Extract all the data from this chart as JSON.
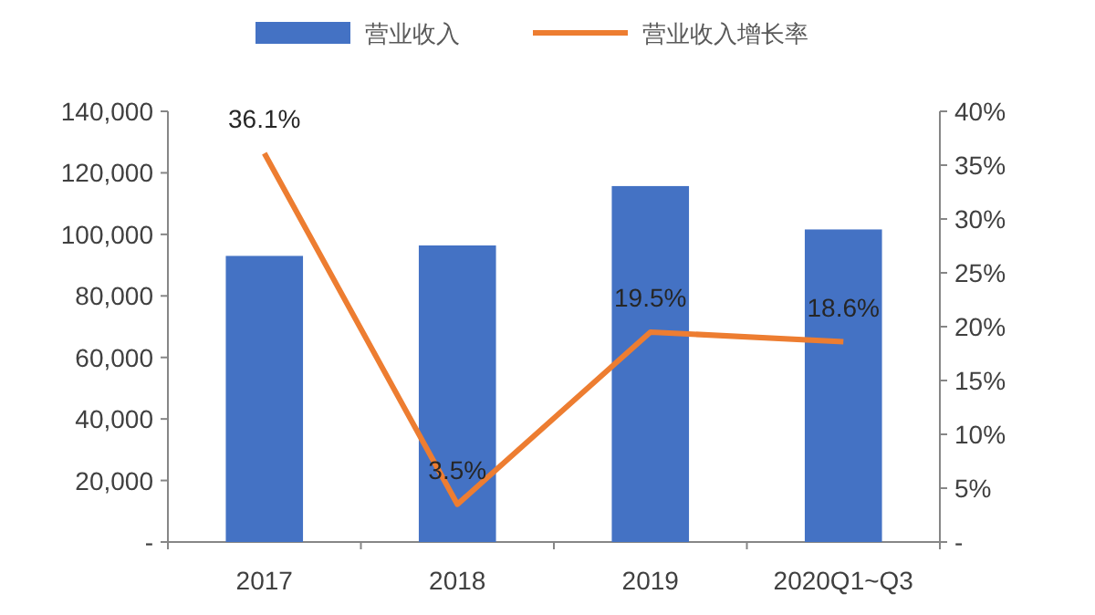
{
  "chart_data": {
    "type": "bar",
    "categories": [
      "2017",
      "2018",
      "2019",
      "2020Q1~Q3"
    ],
    "series": [
      {
        "name": "营业收入",
        "color": "#4472c4",
        "values": [
          93000,
          96400,
          115700,
          101600
        ]
      },
      {
        "name": "营业收入增长率",
        "type": "line",
        "axis": "y2",
        "color": "#ed7d31",
        "values": [
          36.1,
          3.5,
          19.5,
          18.6
        ],
        "value_labels": [
          "36.1%",
          "3.5%",
          "19.5%",
          "18.6%"
        ]
      }
    ],
    "ylim": [
      0,
      140000
    ],
    "yticks": [
      {
        "value": 0,
        "label": "-"
      },
      {
        "value": 20000,
        "label": "20,000"
      },
      {
        "value": 40000,
        "label": "40,000"
      },
      {
        "value": 60000,
        "label": "60,000"
      },
      {
        "value": 80000,
        "label": "80,000"
      },
      {
        "value": 100000,
        "label": "100,000"
      },
      {
        "value": 120000,
        "label": "120,000"
      },
      {
        "value": 140000,
        "label": "140,000"
      }
    ],
    "y2lim": [
      0,
      40
    ],
    "y2ticks": [
      {
        "value": 0,
        "label": "-"
      },
      {
        "value": 5,
        "label": "5%"
      },
      {
        "value": 10,
        "label": "10%"
      },
      {
        "value": 15,
        "label": "15%"
      },
      {
        "value": 20,
        "label": "20%"
      },
      {
        "value": 25,
        "label": "25%"
      },
      {
        "value": 30,
        "label": "30%"
      },
      {
        "value": 35,
        "label": "35%"
      },
      {
        "value": 40,
        "label": "40%"
      }
    ],
    "legend": "top",
    "grid": false
  }
}
